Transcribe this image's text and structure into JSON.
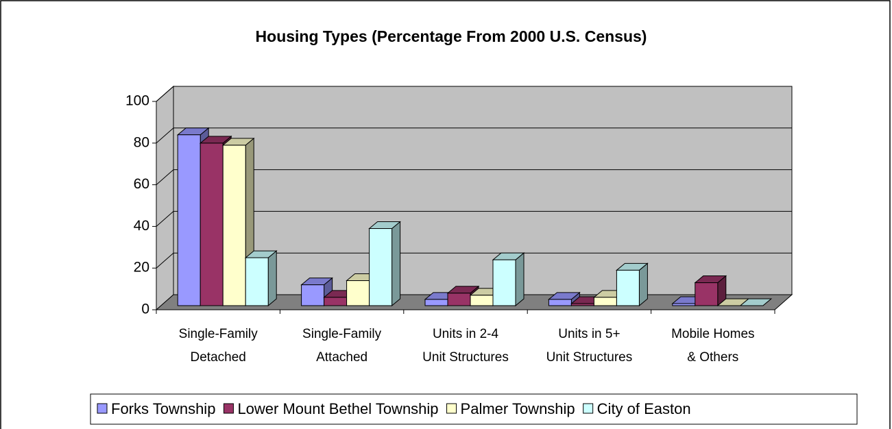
{
  "chart_data": {
    "type": "bar3d",
    "title": "Housing Types  (Percentage From 2000 U.S. Census)",
    "categories": [
      [
        "Single-Family",
        "Detached"
      ],
      [
        "Single-Family",
        "Attached"
      ],
      [
        "Units in 2-4",
        "Unit Structures"
      ],
      [
        "Units in 5+",
        "Unit Structures"
      ],
      [
        "Mobile Homes",
        "& Others"
      ]
    ],
    "series": [
      {
        "name": "Forks Township",
        "color": "#9999ff",
        "values": [
          82,
          10,
          3,
          3,
          1
        ]
      },
      {
        "name": "Lower Mount Bethel Township",
        "color": "#993366",
        "values": [
          78,
          4,
          6,
          1,
          11
        ]
      },
      {
        "name": "Palmer Township",
        "color": "#ffffcc",
        "values": [
          77,
          12,
          5,
          4,
          0
        ]
      },
      {
        "name": "City of Easton",
        "color": "#ccffff",
        "values": [
          23,
          37,
          22,
          17,
          0
        ]
      }
    ],
    "ylim": [
      0,
      100
    ],
    "yticks": [
      0,
      20,
      40,
      60,
      80,
      100
    ],
    "grid": true,
    "legend": "bottom"
  }
}
